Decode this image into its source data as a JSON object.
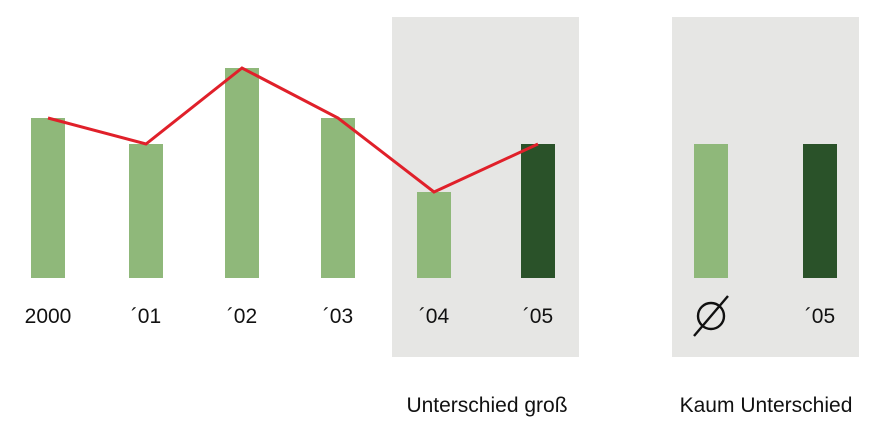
{
  "chart_data": [
    {
      "type": "bar",
      "categories": [
        "2000",
        "´01",
        "´02",
        "´03",
        "´04",
        "´05"
      ],
      "values": [
        160,
        134,
        210,
        160,
        86,
        134
      ],
      "line_values": [
        160,
        134,
        210,
        160,
        86,
        134
      ],
      "ylim": [
        0,
        260
      ],
      "highlight_index": 5,
      "group_label": "Unterschied groß",
      "grid": false,
      "legend": "none"
    },
    {
      "type": "bar",
      "categories": [
        "∅",
        "´05"
      ],
      "values": [
        134,
        134
      ],
      "ylim": [
        0,
        260
      ],
      "highlight_index": 1,
      "group_label": "Kaum Unterschied",
      "grid": false,
      "legend": "none"
    }
  ],
  "colors": {
    "bar_light": "#8fb87a",
    "bar_dark": "#2a5229",
    "line": "#e0202a",
    "panel": "#e6e6e4",
    "text": "#111111"
  }
}
